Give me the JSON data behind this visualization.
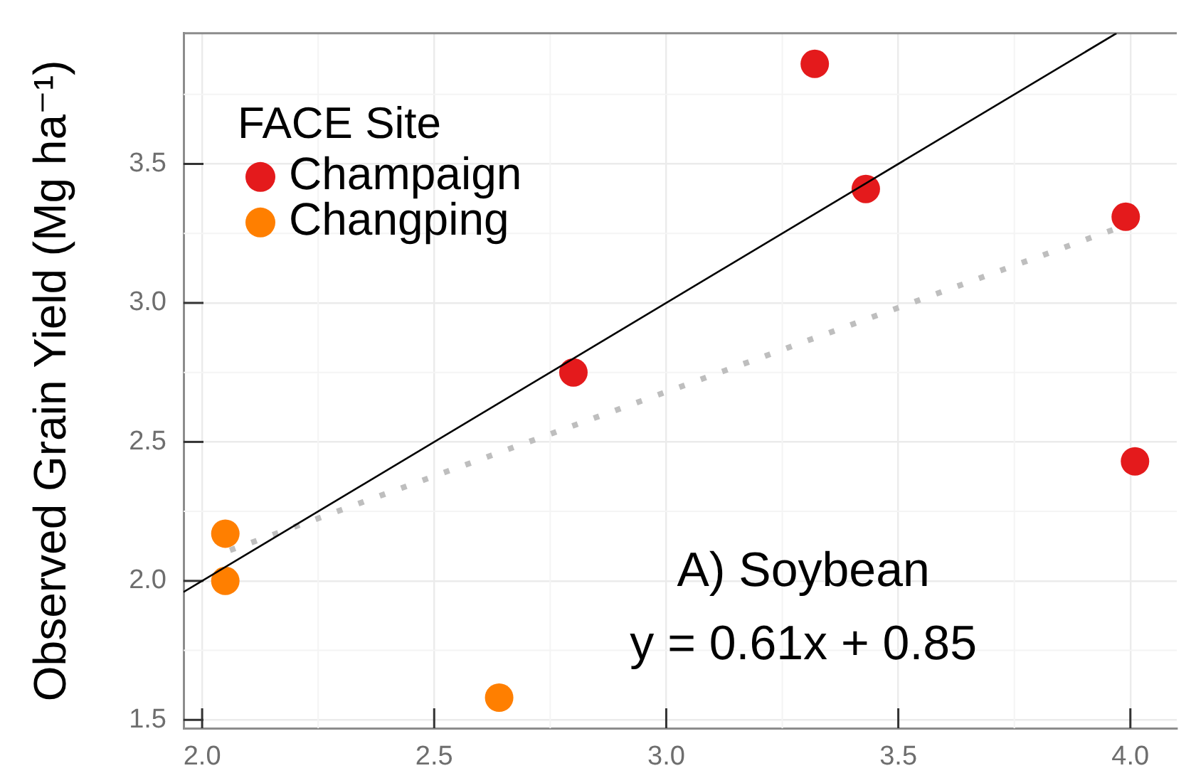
{
  "chart_data": {
    "type": "scatter",
    "ylabel": "Observed Grain Yield (Mg ha⁻¹)",
    "legend_title": "FACE Site",
    "legend": "top left",
    "grid": true,
    "annotations": [
      "A) Soybean",
      "y = 0.61x + 0.85"
    ],
    "series": [
      {
        "name": "Champaign",
        "color": "#e41a1c",
        "marker": "circle",
        "x": [
          3.32,
          3.43,
          3.99,
          2.8,
          4.01
        ],
        "values": [
          3.86,
          3.41,
          3.31,
          2.75,
          2.43
        ]
      },
      {
        "name": "Changping",
        "color": "#ff7f00",
        "marker": "circle",
        "x": [
          2.05,
          2.05,
          2.64
        ],
        "values": [
          2.17,
          2.0,
          1.58
        ]
      },
      {
        "type": "line",
        "color": "#000000",
        "line_style": "solid",
        "marker": "none",
        "x": [
          1.96,
          3.97
        ],
        "values": [
          1.96,
          3.97
        ]
      },
      {
        "type": "line",
        "color": "#bebebe",
        "line_style": "dotted",
        "marker": "none",
        "x": [
          2.06,
          3.99
        ],
        "values": [
          2.11,
          3.28
        ]
      }
    ],
    "xlim": [
      1.96,
      4.1
    ],
    "ylim": [
      1.47,
      3.97
    ],
    "xticks": [
      {
        "value": 2,
        "label": "2.0"
      },
      2.5,
      {
        "value": 3,
        "label": "3.0"
      },
      3.5,
      {
        "value": 4,
        "label": "4.0"
      }
    ],
    "yticks": [
      1.5,
      {
        "value": 2,
        "label": "2.0"
      },
      2.5,
      {
        "value": 3,
        "label": "3.0"
      },
      3.5
    ]
  }
}
